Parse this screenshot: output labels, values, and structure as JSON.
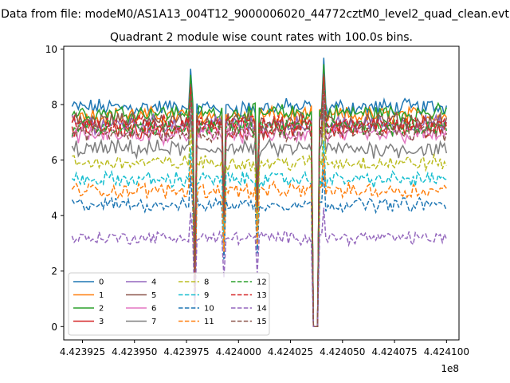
{
  "suptitle": "Data from file: modeM0/AS1A13_004T12_9000006020_44772cztM0_level2_quad_clean.evt",
  "chart_data": {
    "type": "line",
    "title": "Quadrant 2 module wise count rates with 100.0s bins.",
    "xlabel": "",
    "ylabel": "",
    "x_offset_label": "1e8",
    "xlim": [
      442391600,
      442410600
    ],
    "ylim": [
      -0.48,
      10.1
    ],
    "x_ticks": [
      442392500,
      442395000,
      442397500,
      442400000,
      442402500,
      442405000,
      442407500,
      442410000
    ],
    "x_tick_labels": [
      "4.423925",
      "4.423950",
      "4.423975",
      "4.424000",
      "4.424025",
      "4.424050",
      "4.424075",
      "4.424100"
    ],
    "y_ticks": [
      0,
      2,
      4,
      6,
      8,
      10
    ],
    "y_tick_labels": [
      "0",
      "2",
      "4",
      "6",
      "8",
      "10"
    ],
    "x_start": 442392000,
    "x_end": 442410000,
    "bin_width": 100,
    "dips": [
      {
        "center": 442397900,
        "width": 100,
        "min_fraction": 0.2
      },
      {
        "center": 442399300,
        "width": 100,
        "min_fraction": 0.55
      },
      {
        "center": 442400900,
        "width": 100,
        "min_fraction": 0.6
      },
      {
        "center": 442403700,
        "width": 300,
        "min_fraction": 0.0
      }
    ],
    "spikes": [
      {
        "x": 442397700,
        "factor": 1.1
      },
      {
        "x": 442404100,
        "factor": 1.15
      }
    ],
    "legend": {
      "placement": "lower-left",
      "columns": 4
    },
    "series": [
      {
        "name": "0",
        "mean": 7.9,
        "noise": 0.25,
        "color": "#1f77b4",
        "dash": "solid"
      },
      {
        "name": "1",
        "mean": 7.6,
        "noise": 0.25,
        "color": "#ff7f0e",
        "dash": "solid"
      },
      {
        "name": "2",
        "mean": 7.7,
        "noise": 0.25,
        "color": "#2ca02c",
        "dash": "solid"
      },
      {
        "name": "3",
        "mean": 7.1,
        "noise": 0.25,
        "color": "#d62728",
        "dash": "solid"
      },
      {
        "name": "4",
        "mean": 7.3,
        "noise": 0.25,
        "color": "#9467bd",
        "dash": "solid"
      },
      {
        "name": "5",
        "mean": 7.4,
        "noise": 0.25,
        "color": "#8c564b",
        "dash": "solid"
      },
      {
        "name": "6",
        "mean": 6.9,
        "noise": 0.25,
        "color": "#e377c2",
        "dash": "solid"
      },
      {
        "name": "7",
        "mean": 6.4,
        "noise": 0.25,
        "color": "#7f7f7f",
        "dash": "solid"
      },
      {
        "name": "8",
        "mean": 5.9,
        "noise": 0.22,
        "color": "#bcbd22",
        "dash": "dashed"
      },
      {
        "name": "9",
        "mean": 5.3,
        "noise": 0.22,
        "color": "#17becf",
        "dash": "dashed"
      },
      {
        "name": "10",
        "mean": 4.4,
        "noise": 0.2,
        "color": "#1f77b4",
        "dash": "dashed"
      },
      {
        "name": "11",
        "mean": 4.9,
        "noise": 0.22,
        "color": "#ff7f0e",
        "dash": "dashed"
      },
      {
        "name": "12",
        "mean": 7.2,
        "noise": 0.25,
        "color": "#2ca02c",
        "dash": "dashed"
      },
      {
        "name": "13",
        "mean": 7.3,
        "noise": 0.25,
        "color": "#d62728",
        "dash": "dashed"
      },
      {
        "name": "14",
        "mean": 3.2,
        "noise": 0.18,
        "color": "#9467bd",
        "dash": "dashed"
      },
      {
        "name": "15",
        "mean": 7.0,
        "noise": 0.25,
        "color": "#8c564b",
        "dash": "dashed"
      }
    ]
  }
}
